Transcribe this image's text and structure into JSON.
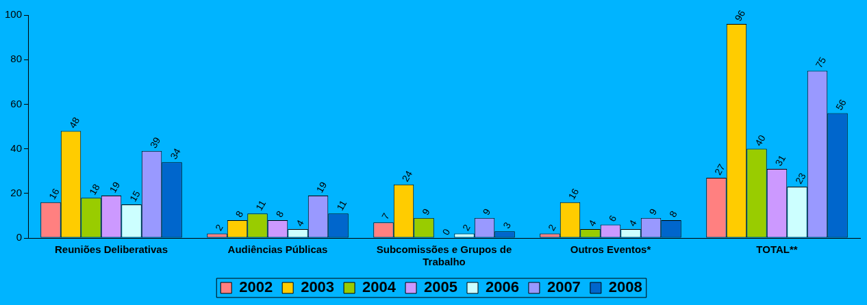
{
  "chart_data": {
    "type": "bar",
    "categories": [
      "Reuniões Deliberativas",
      "Audiências Públicas",
      "Subcomissões e Grupos de Trabalho",
      "Outros Eventos*",
      "TOTAL**"
    ],
    "series": [
      {
        "name": "2002",
        "color": "#ff8080",
        "values": [
          16,
          2,
          7,
          2,
          27
        ]
      },
      {
        "name": "2003",
        "color": "#ffcc00",
        "values": [
          48,
          8,
          24,
          16,
          96
        ]
      },
      {
        "name": "2004",
        "color": "#99cc00",
        "values": [
          18,
          11,
          9,
          4,
          40
        ]
      },
      {
        "name": "2005",
        "color": "#cc99ff",
        "values": [
          19,
          8,
          0,
          6,
          31
        ]
      },
      {
        "name": "2006",
        "color": "#ccffff",
        "values": [
          15,
          4,
          2,
          4,
          23
        ]
      },
      {
        "name": "2007",
        "color": "#9999ff",
        "values": [
          39,
          19,
          9,
          9,
          75
        ]
      },
      {
        "name": "2008",
        "color": "#0066cc",
        "values": [
          34,
          11,
          3,
          8,
          56
        ]
      }
    ],
    "ylim": [
      0,
      100
    ],
    "yticks": [
      0,
      20,
      40,
      60,
      80,
      100
    ],
    "grid": false,
    "legend": "bottom",
    "data_labels": true
  }
}
